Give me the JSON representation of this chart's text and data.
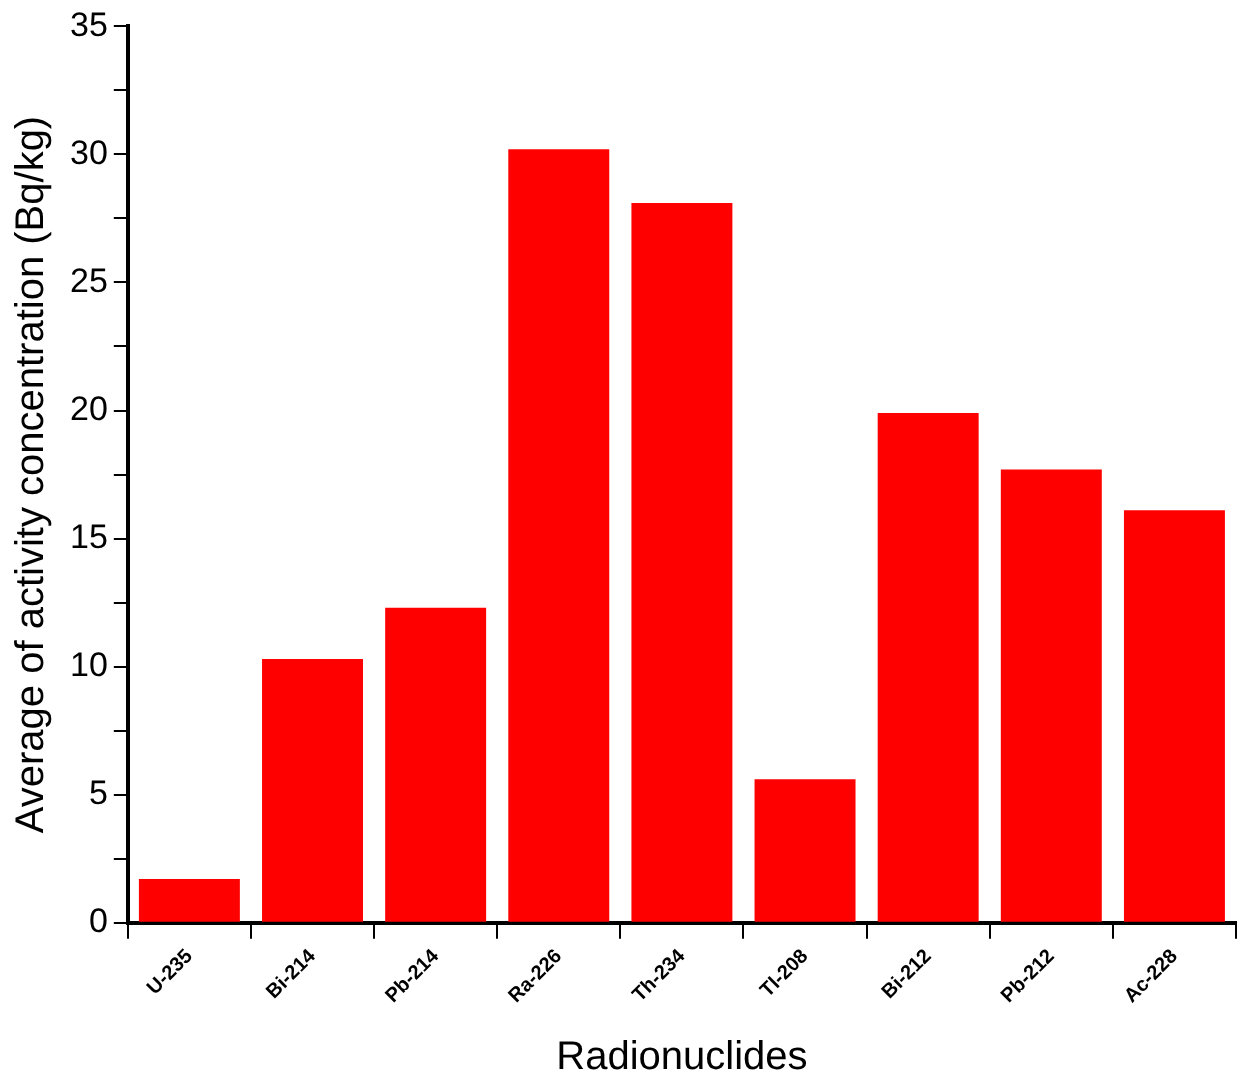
{
  "chart_data": {
    "type": "bar",
    "xlabel": "Radionuclides",
    "ylabel": "Average of activity concentration (Bq/kg)",
    "categories": [
      "U-235",
      "Bi-214",
      "Pb-214",
      "Ra-226",
      "Th-234",
      "Tl-208",
      "Bi-212",
      "Pb-212",
      "Ac-228"
    ],
    "values": [
      1.7,
      10.3,
      12.3,
      30.2,
      28.1,
      5.6,
      19.9,
      17.7,
      16.1
    ],
    "color": "#ff0000",
    "ylim": [
      0,
      35
    ],
    "yticks": [
      0,
      {
        "value": 2.5,
        "label": null
      },
      5,
      {
        "value": 7.5,
        "label": null
      },
      10,
      {
        "value": 12.5,
        "label": null
      },
      15,
      {
        "value": 17.5,
        "label": null
      },
      20,
      {
        "value": 22.5,
        "label": null
      },
      25,
      {
        "value": 27.5,
        "label": null
      },
      30,
      {
        "value": 32.5,
        "label": null
      },
      35
    ],
    "grid": false,
    "legend": false
  }
}
